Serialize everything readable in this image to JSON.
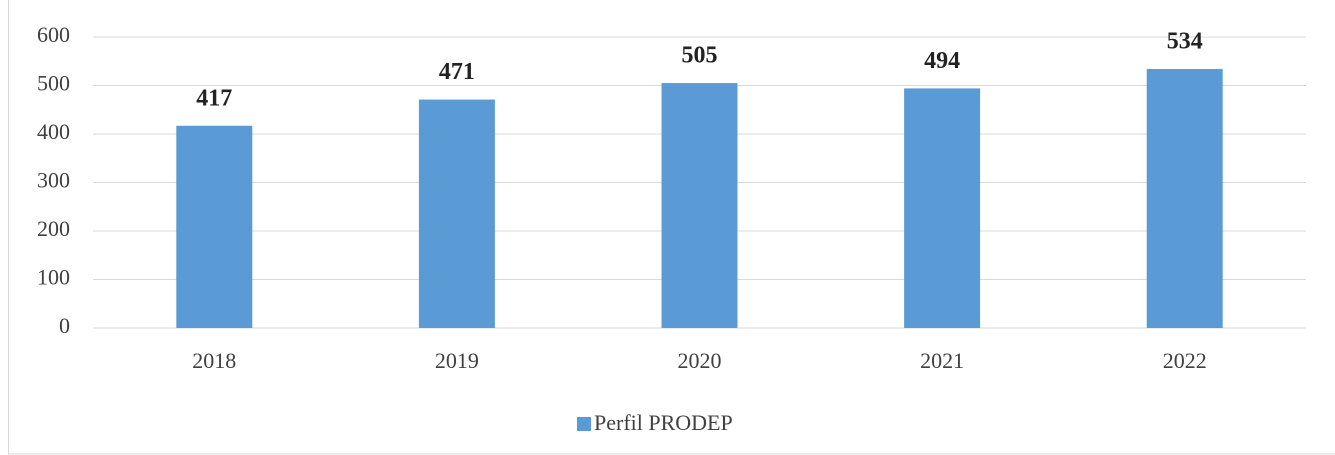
{
  "chart_data": {
    "type": "bar",
    "categories": [
      "2018",
      "2019",
      "2020",
      "2021",
      "2022"
    ],
    "series": [
      {
        "name": "Perfil PRODEP",
        "color": "#5b9bd5",
        "values": [
          417,
          471,
          505,
          494,
          534
        ]
      }
    ],
    "ylim": [
      0,
      600
    ],
    "yticks": [
      0,
      100,
      200,
      300,
      400,
      500,
      600
    ],
    "grid": true,
    "legend": "bottom"
  }
}
